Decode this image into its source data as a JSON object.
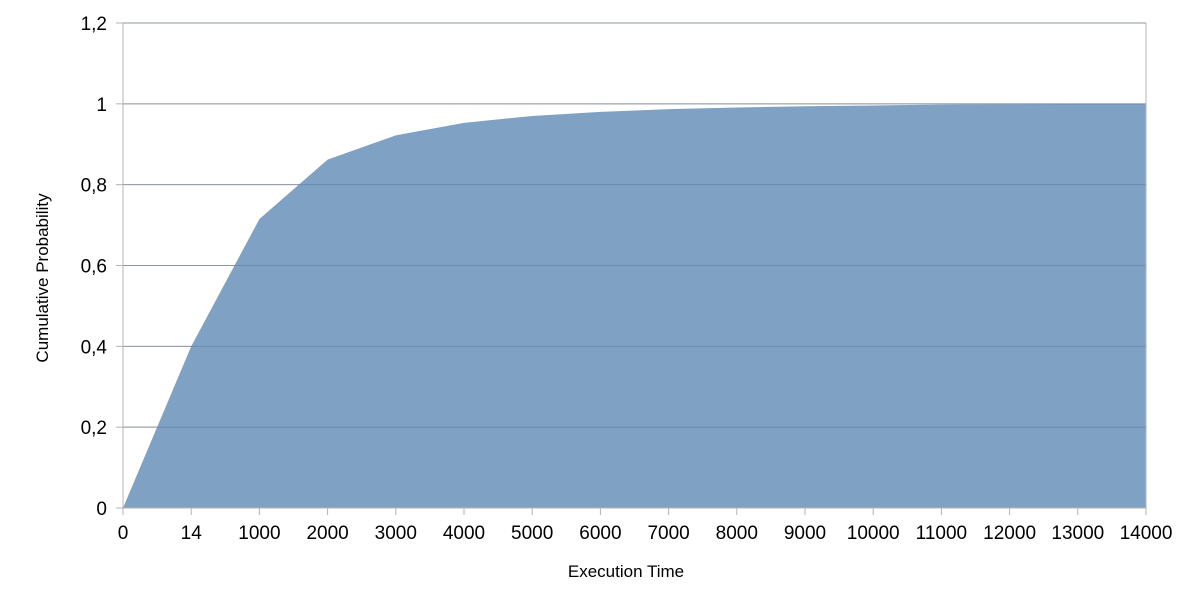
{
  "chart_data": {
    "type": "area",
    "title": "",
    "xlabel": "Execution Time",
    "ylabel": "Cumulative Probability",
    "categories": [
      "0",
      "14",
      "1000",
      "2000",
      "3000",
      "4000",
      "5000",
      "6000",
      "7000",
      "8000",
      "9000",
      "10000",
      "11000",
      "12000",
      "13000",
      "14000"
    ],
    "values": [
      0,
      0.4,
      0.715,
      0.862,
      0.922,
      0.953,
      0.97,
      0.98,
      0.987,
      0.991,
      0.994,
      0.996,
      0.998,
      0.999,
      1.0,
      1.0
    ],
    "ylim": [
      0,
      1.2
    ],
    "yticks": [
      {
        "value": 0,
        "label": "0"
      },
      {
        "value": 0.2,
        "label": "0,2"
      },
      {
        "value": 0.4,
        "label": "0,4"
      },
      {
        "value": 0.6,
        "label": "0,6"
      },
      {
        "value": 0.8,
        "label": "0,8"
      },
      {
        "value": 1.0,
        "label": "1"
      },
      {
        "value": 1.2,
        "label": "1,2"
      }
    ],
    "grid": "horizontal",
    "legend": "none",
    "colors": {
      "area": "#7fa1c4",
      "grid": "#b3b3b3",
      "axis": "#b3b3b3"
    }
  }
}
